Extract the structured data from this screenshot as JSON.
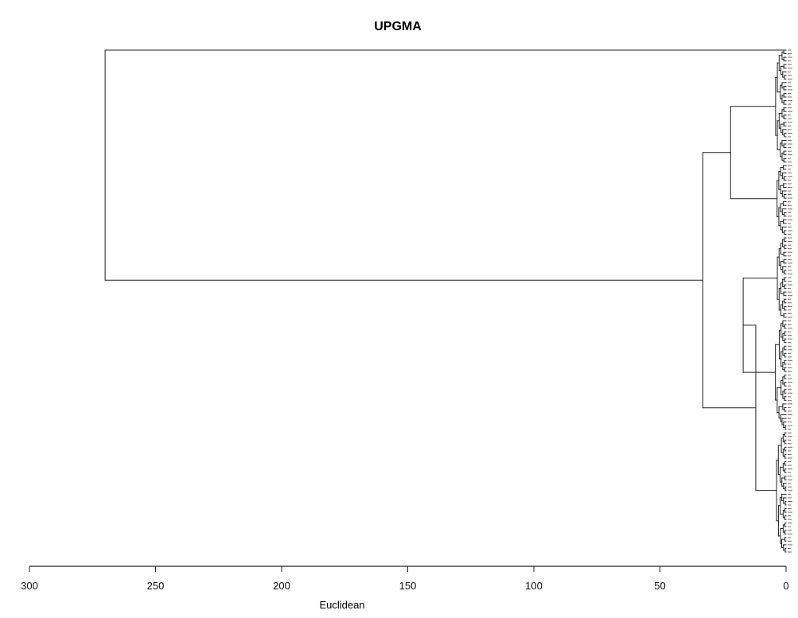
{
  "chart_data": {
    "type": "dendrogram",
    "title": "UPGMA",
    "xlabel": "Euclidean",
    "xlim": [
      300,
      0
    ],
    "x_ticks": [
      300,
      250,
      200,
      150,
      100,
      50,
      0
    ],
    "leaf_count": 140,
    "leaf_labels_legible": false,
    "orientation": "leaves-right",
    "major_merges": [
      {
        "description": "root merge of upper group and main cluster",
        "height": 270
      },
      {
        "description": "main cluster merge",
        "height": 33
      },
      {
        "description": "top subcluster merge",
        "height": 22
      },
      {
        "description": "lower subcluster merge",
        "height": 17
      },
      {
        "description": "bottom subcluster merge",
        "height": 12
      }
    ]
  },
  "colors": {
    "line": "#222222",
    "text": "#111111",
    "leaf_marker": "#8a6a4a"
  }
}
